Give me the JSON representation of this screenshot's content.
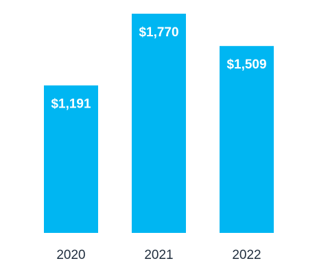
{
  "colors": {
    "bar": "#00b6f2",
    "data_label": "#ffffff",
    "tick_label": "#1f2d3d",
    "background": "#ffffff"
  },
  "chart_data": {
    "type": "bar",
    "categories": [
      "2020",
      "2021",
      "2022"
    ],
    "values": [
      1191,
      1770,
      1509
    ],
    "data_labels": [
      "$1,191",
      "$1,770",
      "$1,509"
    ],
    "title": "",
    "xlabel": "",
    "ylabel": "",
    "ylim": [
      0,
      1770
    ],
    "grid": false,
    "legend": "none"
  }
}
